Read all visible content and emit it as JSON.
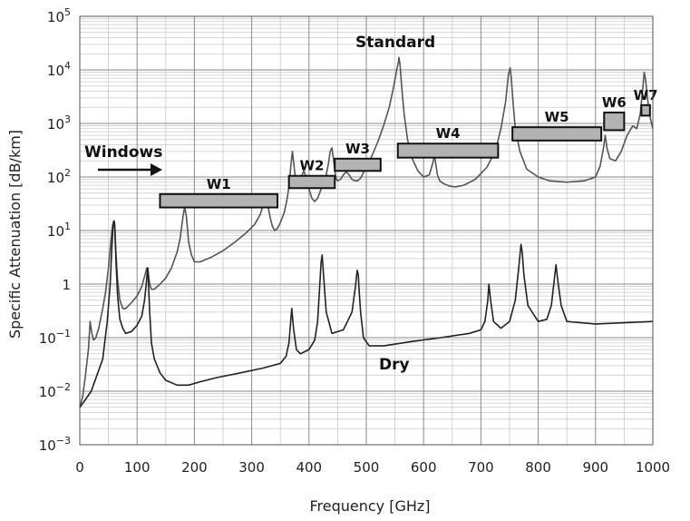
{
  "chart_data": {
    "type": "line",
    "title": "",
    "xlabel": "Frequency [GHz]",
    "ylabel": "Specific Attenuation [dB/km]",
    "xlim": [
      0,
      1000
    ],
    "ylim": [
      0.001,
      100000
    ],
    "yscale": "log",
    "grid": true,
    "x_ticks": [
      0,
      100,
      200,
      300,
      400,
      500,
      600,
      700,
      800,
      900,
      1000
    ],
    "x_tick_labels": [
      "0",
      "100",
      "200",
      "300",
      "400",
      "500",
      "600",
      "700",
      "800",
      "900",
      "1000"
    ],
    "y_ticks": [
      0.001,
      0.01,
      0.1,
      1,
      10,
      100,
      1000,
      10000,
      100000
    ],
    "y_tick_labels": [
      {
        "base": "10",
        "exp": "−3"
      },
      {
        "base": "10",
        "exp": "−2"
      },
      {
        "base": "10",
        "exp": "−1"
      },
      {
        "base": "1",
        "exp": ""
      },
      {
        "base": "10",
        "exp": "1"
      },
      {
        "base": "10",
        "exp": "2"
      },
      {
        "base": "10",
        "exp": "3"
      },
      {
        "base": "10",
        "exp": "4"
      },
      {
        "base": "10",
        "exp": "5"
      }
    ],
    "annotations": {
      "standard": "Standard",
      "dry": "Dry",
      "windows": "Windows"
    },
    "windows": [
      {
        "label": "W1",
        "x_start": 140,
        "x_end": 345,
        "y_low": 27,
        "y_high": 48
      },
      {
        "label": "W2",
        "x_start": 365,
        "x_end": 445,
        "y_low": 62,
        "y_high": 105
      },
      {
        "label": "W3",
        "x_start": 445,
        "x_end": 525,
        "y_low": 130,
        "y_high": 220
      },
      {
        "label": "W4",
        "x_start": 555,
        "x_end": 730,
        "y_low": 230,
        "y_high": 420
      },
      {
        "label": "W5",
        "x_start": 755,
        "x_end": 910,
        "y_low": 480,
        "y_high": 850
      },
      {
        "label": "W6",
        "x_start": 915,
        "x_end": 950,
        "y_low": 750,
        "y_high": 1600
      },
      {
        "label": "W7",
        "x_start": 980,
        "x_end": 995,
        "y_low": 1400,
        "y_high": 2200
      }
    ],
    "series": [
      {
        "name": "Standard",
        "x": [
          0,
          5,
          10,
          15,
          18,
          21,
          24,
          28,
          33,
          40,
          45,
          50,
          54,
          57,
          59,
          60,
          61,
          63,
          66,
          70,
          75,
          80,
          90,
          100,
          108,
          114,
          117,
          118.7,
          120,
          122,
          125,
          130,
          140,
          150,
          160,
          170,
          175,
          180,
          183,
          186,
          190,
          195,
          200,
          210,
          230,
          250,
          270,
          290,
          305,
          315,
          320,
          323,
          325,
          328,
          332,
          336,
          340,
          345,
          350,
          357,
          362,
          366,
          368,
          371,
          373,
          376,
          380,
          385,
          388,
          391,
          395,
          400,
          405,
          410,
          415,
          420,
          425,
          430,
          434,
          437,
          440,
          443,
          446,
          448,
          450,
          455,
          460,
          465,
          470,
          475,
          480,
          485,
          490,
          495,
          500,
          510,
          520,
          530,
          540,
          548,
          553,
          556,
          557,
          559,
          562,
          566,
          572,
          580,
          590,
          600,
          610,
          616,
          619,
          621,
          624,
          628,
          635,
          645,
          655,
          670,
          690,
          710,
          725,
          735,
          743,
          748,
          751,
          753,
          756,
          760,
          768,
          780,
          800,
          820,
          850,
          880,
          900,
          908,
          914,
          917,
          920,
          925,
          935,
          945,
          955,
          965,
          972,
          978,
          982,
          985,
          987,
          990,
          994,
          1000
        ],
        "y": [
          0.005,
          0.008,
          0.02,
          0.06,
          0.2,
          0.12,
          0.09,
          0.1,
          0.15,
          0.35,
          0.7,
          2.0,
          6.0,
          12.0,
          15.0,
          15.0,
          12.0,
          4.0,
          1.2,
          0.5,
          0.35,
          0.35,
          0.45,
          0.6,
          0.9,
          1.5,
          2.0,
          2.0,
          1.5,
          1.0,
          0.8,
          0.8,
          1.0,
          1.3,
          2.0,
          4.0,
          7.0,
          18.0,
          28.0,
          18.0,
          6.0,
          3.5,
          2.6,
          2.6,
          3.2,
          4.2,
          6.0,
          9.0,
          13.0,
          20.0,
          30.0,
          38.0,
          40.0,
          30.0,
          18.0,
          12.0,
          10.0,
          11.0,
          14.0,
          22.0,
          40.0,
          80.0,
          150.0,
          300.0,
          200.0,
          100.0,
          70.0,
          80.0,
          110.0,
          130.0,
          100.0,
          60.0,
          40.0,
          35.0,
          40.0,
          55.0,
          75.0,
          110.0,
          180.0,
          300.0,
          350.0,
          200.0,
          110.0,
          90.0,
          85.0,
          90.0,
          110.0,
          125.0,
          110.0,
          90.0,
          85.0,
          85.0,
          95.0,
          120.0,
          150.0,
          250.0,
          450.0,
          900.0,
          2000.0,
          5000.0,
          10000.0,
          14000.0,
          17000.0,
          12000.0,
          4500.0,
          1500.0,
          500.0,
          220.0,
          130.0,
          100.0,
          110.0,
          180.0,
          260.0,
          180.0,
          110.0,
          85.0,
          75.0,
          68.0,
          65.0,
          70.0,
          90.0,
          150.0,
          300.0,
          800.0,
          2500.0,
          8000.0,
          11000.0,
          7000.0,
          2500.0,
          800.0,
          300.0,
          140.0,
          100.0,
          85.0,
          80.0,
          85.0,
          100.0,
          160.0,
          350.0,
          600.0,
          350.0,
          220.0,
          200.0,
          300.0,
          600.0,
          900.0,
          800.0,
          1500.0,
          4000.0,
          9000.0,
          7000.0,
          3500.0,
          1500.0,
          800.0
        ]
      },
      {
        "name": "Dry",
        "x": [
          0,
          10,
          20,
          30,
          40,
          48,
          53,
          56,
          58,
          60,
          61,
          63,
          66,
          70,
          75,
          80,
          90,
          100,
          108,
          113,
          116,
          118,
          118.7,
          120,
          122,
          125,
          130,
          140,
          150,
          170,
          190,
          210,
          240,
          280,
          320,
          350,
          360,
          365,
          368,
          370,
          373,
          378,
          385,
          400,
          410,
          415,
          418,
          421,
          423,
          426,
          430,
          440,
          460,
          475,
          481,
          484,
          486,
          487,
          490,
          495,
          505,
          530,
          580,
          630,
          680,
          700,
          707,
          712,
          714,
          717,
          722,
          735,
          750,
          760,
          766,
          770,
          772,
          775,
          782,
          800,
          815,
          823,
          828,
          831,
          834,
          840,
          850,
          900,
          1000
        ],
        "y": [
          0.005,
          0.007,
          0.01,
          0.02,
          0.04,
          0.2,
          1.0,
          5.0,
          12.0,
          15.0,
          12.0,
          3.0,
          0.6,
          0.22,
          0.15,
          0.12,
          0.13,
          0.17,
          0.25,
          0.5,
          1.0,
          1.8,
          2.0,
          1.0,
          0.3,
          0.08,
          0.04,
          0.022,
          0.016,
          0.013,
          0.013,
          0.015,
          0.018,
          0.022,
          0.027,
          0.033,
          0.045,
          0.08,
          0.2,
          0.35,
          0.15,
          0.06,
          0.05,
          0.06,
          0.09,
          0.2,
          0.7,
          2.5,
          3.5,
          1.2,
          0.3,
          0.12,
          0.14,
          0.3,
          0.9,
          1.8,
          1.5,
          0.9,
          0.3,
          0.1,
          0.07,
          0.07,
          0.085,
          0.1,
          0.12,
          0.14,
          0.2,
          0.5,
          1.0,
          0.5,
          0.2,
          0.15,
          0.2,
          0.5,
          2.0,
          5.5,
          4.0,
          1.5,
          0.4,
          0.2,
          0.22,
          0.4,
          1.2,
          2.3,
          1.2,
          0.4,
          0.2,
          0.18,
          0.2
        ]
      }
    ]
  }
}
